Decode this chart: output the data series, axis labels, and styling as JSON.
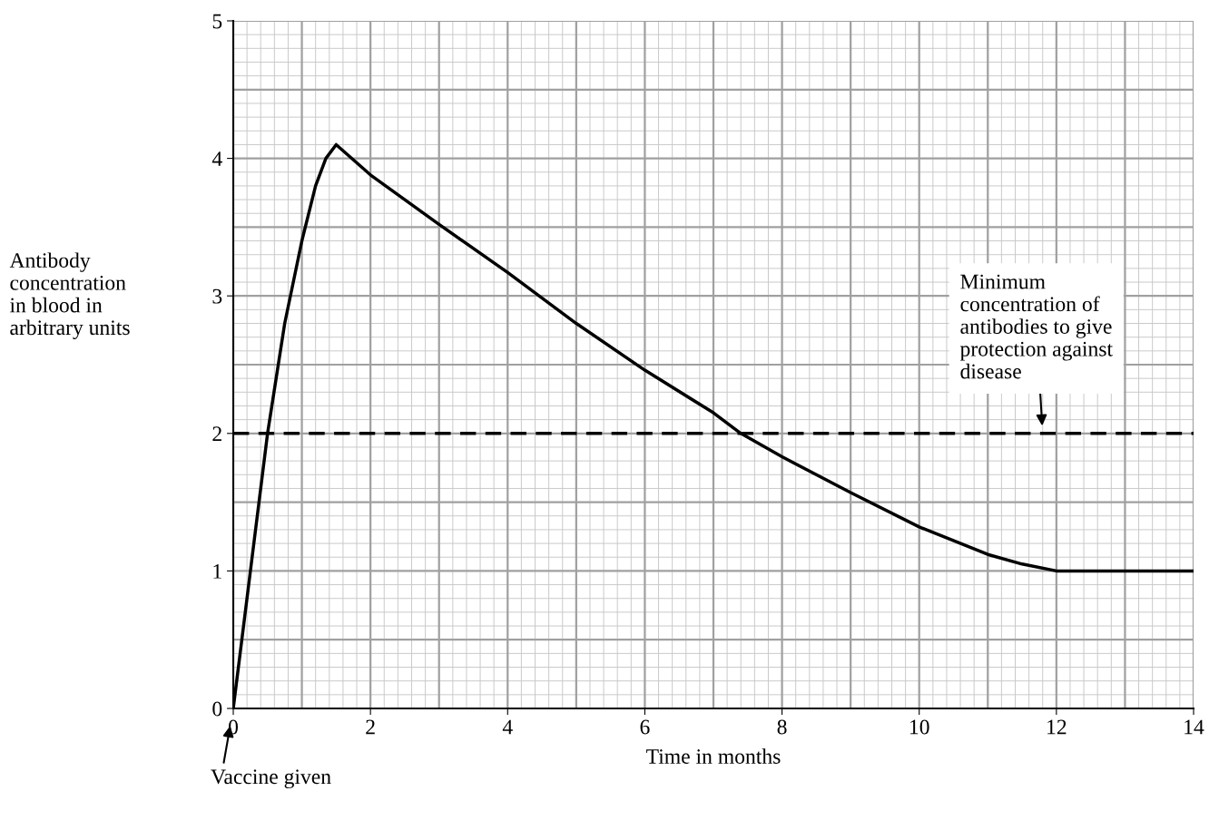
{
  "chart_data": {
    "type": "line",
    "xlabel": "Time in months",
    "ylabel": "Antibody\nconcentration\nin blood in\narbitrary units",
    "series": [
      {
        "color": "#000000",
        "x": [
          0,
          0.25,
          0.5,
          0.75,
          1.0,
          1.2,
          1.35,
          1.5,
          2,
          3,
          4,
          5,
          6,
          7,
          7.4,
          8,
          9,
          10,
          11,
          11.5,
          12,
          14
        ],
        "values": [
          0,
          1.0,
          2.0,
          2.8,
          3.4,
          3.8,
          4.0,
          4.1,
          3.88,
          3.52,
          3.17,
          2.8,
          2.46,
          2.15,
          2.0,
          1.83,
          1.57,
          1.32,
          1.12,
          1.05,
          1.0,
          1.0
        ]
      }
    ],
    "xlim": [
      0,
      14
    ],
    "xticks": [
      0,
      {
        "value": 1,
        "label": null
      },
      2,
      {
        "value": 3,
        "label": null
      },
      4,
      {
        "value": 5,
        "label": null
      },
      6,
      {
        "value": 7,
        "label": null
      },
      8,
      {
        "value": 9,
        "label": null
      },
      10,
      {
        "value": 11,
        "label": null
      },
      12,
      {
        "value": 13,
        "label": null
      },
      14
    ],
    "ylim": [
      0,
      5
    ],
    "yticks": [
      0,
      {
        "value": 0.5,
        "label": null
      },
      1,
      {
        "value": 1.5,
        "label": null
      },
      2,
      {
        "value": 2.5,
        "label": null
      },
      3,
      {
        "value": 3.5,
        "label": null
      },
      4,
      {
        "value": 4.5,
        "label": null
      },
      5
    ],
    "grid": true,
    "marker": "none",
    "line_style": "solid",
    "ref_lines": [
      {
        "axis": "y",
        "value": 2,
        "color": "#000000",
        "line_style": "dashed"
      }
    ],
    "annotations": [
      {
        "text": "Minimum\nconcentration of\nantibodies to give\nprotection against\ndisease",
        "x": 11.8,
        "y": 2
      },
      {
        "text": "Vaccine given",
        "x": 0,
        "y": 0
      }
    ]
  }
}
